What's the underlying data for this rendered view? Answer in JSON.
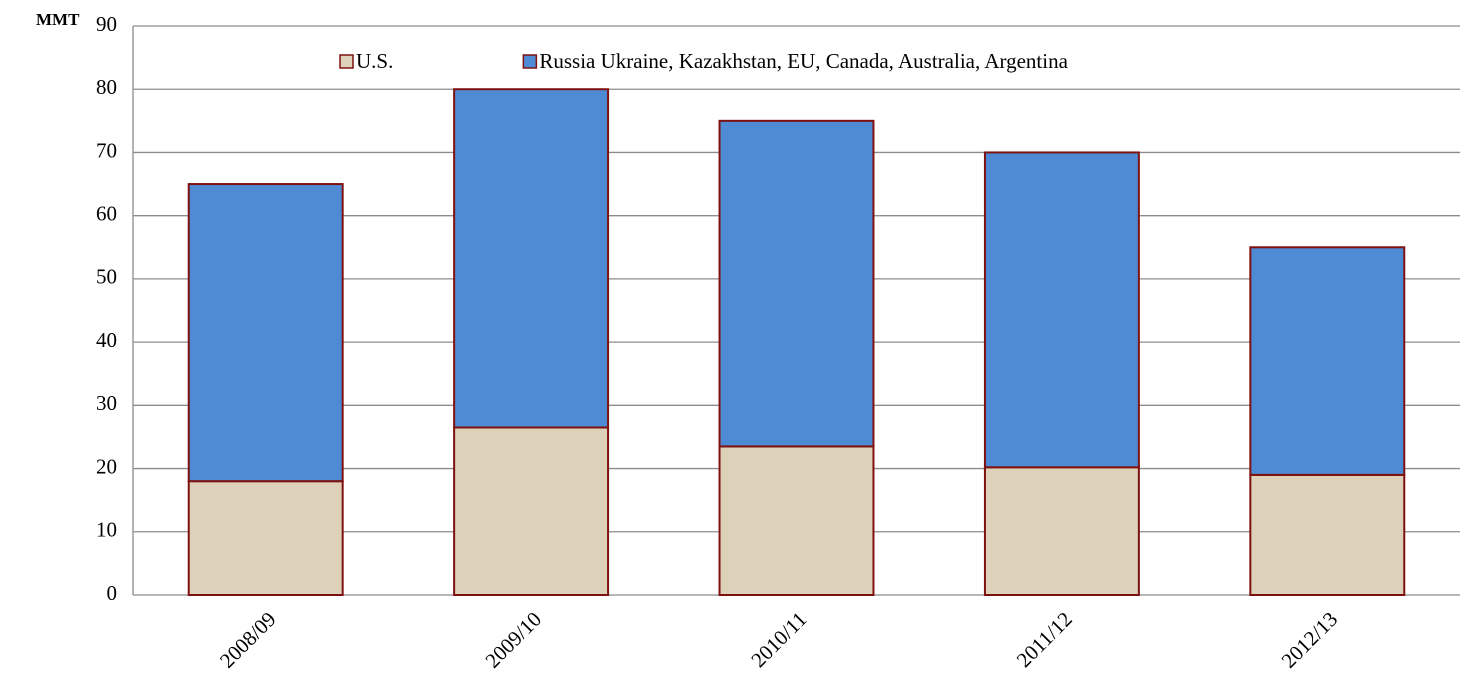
{
  "chart_data": {
    "type": "stacked_bar",
    "ylabel": "MMT",
    "categories": [
      "2008/09",
      "2009/10",
      "2010/11",
      "2011/12",
      "2012/13"
    ],
    "series": [
      {
        "name": "U.S.",
        "color": "#ddd1ba",
        "values": [
          18,
          26.5,
          23.5,
          20.2,
          19
        ]
      },
      {
        "name": "Russia Ukraine, Kazakhstan, EU, Canada, Australia, Argentina",
        "color": "#4f8bd4",
        "values": [
          47,
          53.5,
          51.5,
          49.8,
          36
        ]
      }
    ],
    "edge_color": "#7f1010",
    "ylim": [
      0,
      90
    ],
    "yticks": [
      0,
      10,
      20,
      30,
      40,
      50,
      60,
      70,
      80,
      90
    ],
    "grid": true
  }
}
